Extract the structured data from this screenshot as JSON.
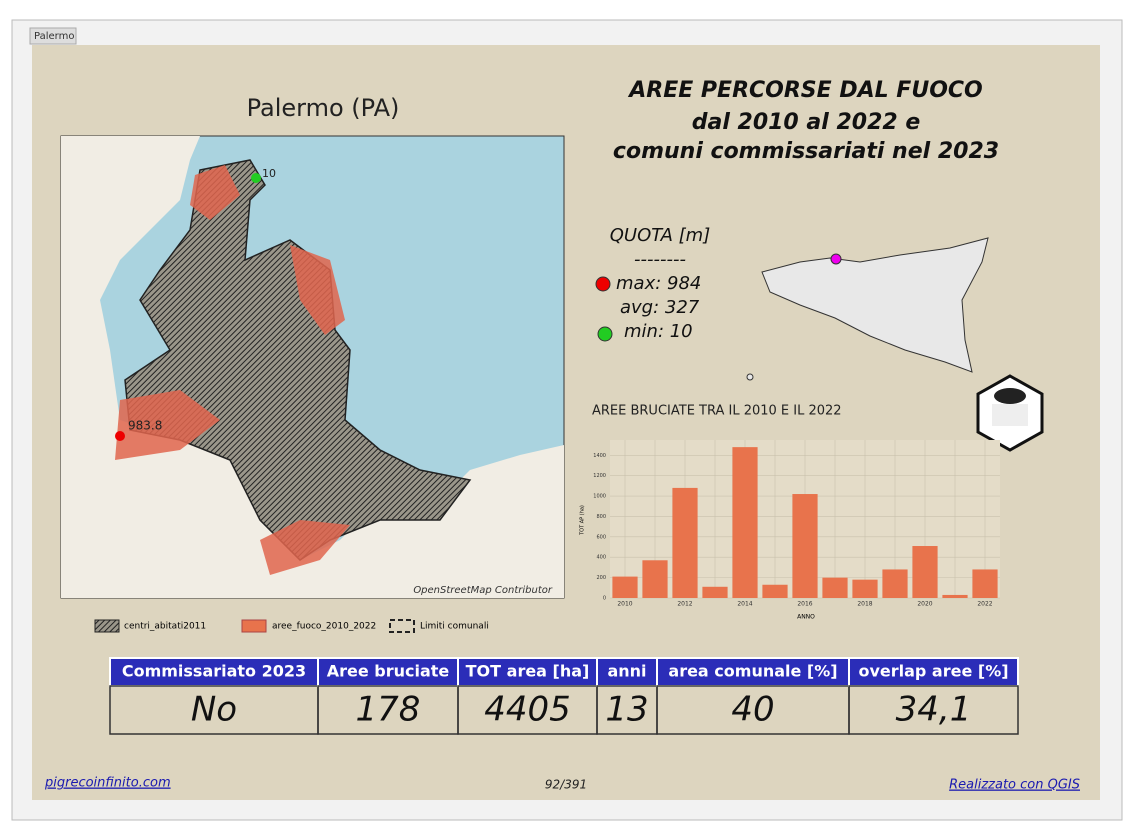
{
  "tab": "Palermo",
  "map": {
    "title": "Palermo (PA)",
    "min_label": "10",
    "max_label": "983.8",
    "credit": "OpenStreetMap Contributor"
  },
  "legend": [
    "centri_abitati2011",
    "aree_fuoco_2010_2022",
    "Limiti comunali"
  ],
  "header": {
    "title": [
      "AREE PERCORSE DAL FUOCO",
      "dal 2010 al 2022 e",
      "comuni commissariati nel 2023"
    ]
  },
  "quota": {
    "title": "QUOTA [m]",
    "separator": "--------",
    "max": "max: 984",
    "avg": "avg: 327",
    "min": "min: 10"
  },
  "chart_data": {
    "type": "bar",
    "title": "AREE BRUCIATE TRA IL 2010 E IL 2022",
    "x_label": "ANNO",
    "y_label": "TOT AP (ha)",
    "categories": [
      "2010",
      null,
      "2012",
      null,
      "2014",
      null,
      "2016",
      null,
      "2018",
      null,
      "2020",
      null,
      "2022"
    ],
    "values": [
      210,
      370,
      1080,
      110,
      1480,
      130,
      1020,
      200,
      180,
      280,
      510,
      30,
      280
    ],
    "color": "#e8734c",
    "ylim": [
      0,
      1550
    ],
    "yticks": [
      0,
      200,
      400,
      600,
      800,
      1000,
      1200,
      1400
    ],
    "grid": true
  },
  "table": {
    "header": [
      "Commissariato 2023",
      "Aree bruciate",
      "TOT area [ha]",
      "anni",
      "area comunale [%]",
      "overlap aree [%]"
    ],
    "row": [
      "No",
      "178",
      "4405",
      "13",
      "40",
      "34,1"
    ]
  },
  "footer": {
    "left": "pigrecoinfinito.com",
    "center": "92/391",
    "right": "Realizzato con QGIS"
  }
}
